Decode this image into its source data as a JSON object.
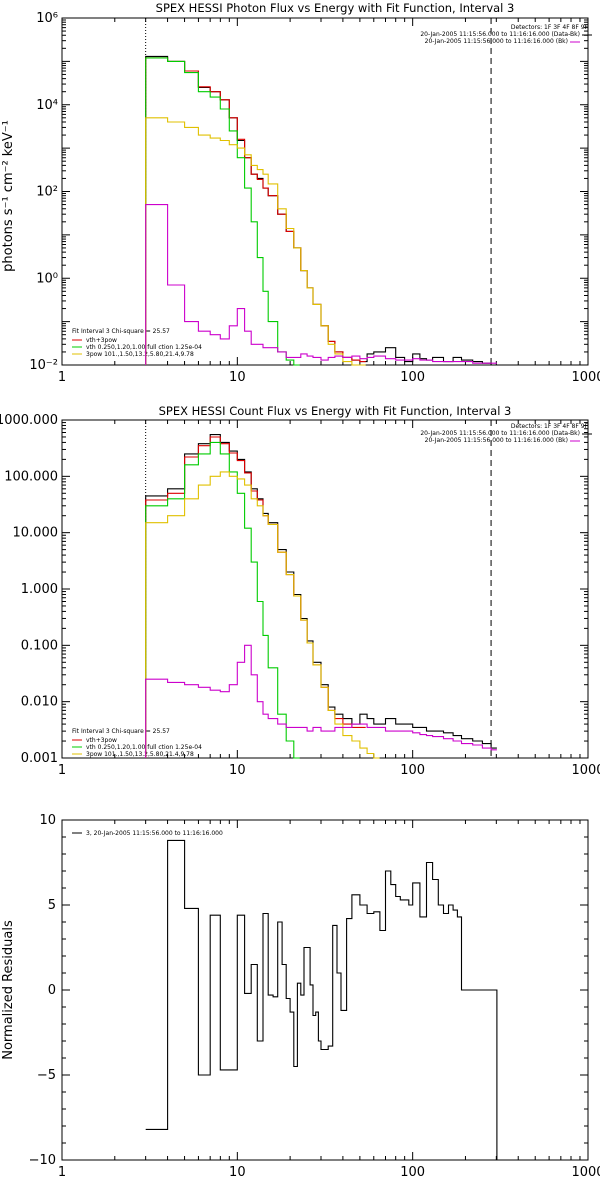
{
  "chart_data": [
    {
      "type": "line",
      "title": "SPEX HESSI Photon Flux vs Energy with Fit Function, Interval 3",
      "xlabel": "",
      "ylabel": "photons s⁻¹ cm⁻² keV⁻¹",
      "xscale": "log",
      "yscale": "log",
      "xlim": [
        1,
        1000
      ],
      "ylim": [
        0.01,
        1000000
      ],
      "x_ticks": [
        "1",
        "10",
        "100",
        "1000"
      ],
      "y_ticks": [
        "10⁻²",
        "10⁰",
        "10²",
        "10⁴",
        "10⁶"
      ],
      "marker_lines": [
        {
          "x": 3,
          "style": "dotted"
        },
        {
          "x": 280,
          "style": "dashed"
        }
      ],
      "header": {
        "detectors": "Detectors: 1F 3F 4F 8F 9F",
        "line1": "20-Jan-2005 11:15:56.000 to 11:16:16.000 (Data-Bk)",
        "line2": "20-Jan-2005 11:15:56.000 to 11:16:16.000 (Bk)"
      },
      "fit_info": {
        "line1": "Fit Interval 3   Chi-square = 25.57",
        "items": [
          "vth+3pow",
          "vth 0.250,1.20,1.00  full ction 1.25e-04",
          "3pow 101.,1.50,13.2,5.80,21.4,9.78"
        ]
      },
      "series": [
        {
          "color": "#000000",
          "x": [
            3,
            4,
            5,
            6,
            7,
            8,
            9,
            10,
            11,
            12,
            13,
            14,
            15,
            17,
            19,
            21,
            23,
            25,
            27,
            30,
            33,
            36,
            40,
            45,
            50,
            55,
            60,
            70,
            80,
            90,
            100,
            110,
            120,
            130,
            150,
            170,
            190,
            220,
            250,
            280
          ],
          "y": [
            130000,
            100000,
            60000,
            25000,
            20000,
            13000,
            5000,
            1500,
            600,
            250,
            200,
            120,
            80,
            30,
            12,
            5,
            1.5,
            0.6,
            0.25,
            0.08,
            0.035,
            0.02,
            0.015,
            0.013,
            0.012,
            0.018,
            0.02,
            0.025,
            0.015,
            0.012,
            0.018,
            0.014,
            0.013,
            0.015,
            0.012,
            0.015,
            0.013,
            0.012,
            0.011,
            0.01
          ]
        },
        {
          "color": "#dd0000",
          "x": [
            3,
            4,
            5,
            6,
            7,
            8,
            9,
            10,
            11,
            12,
            13,
            14,
            15,
            17,
            19,
            21,
            23,
            25,
            27,
            30,
            33,
            36,
            40,
            45,
            50
          ],
          "y": [
            120000,
            100000,
            60000,
            26000,
            20000,
            13000,
            5000,
            1600,
            600,
            250,
            190,
            120,
            80,
            30,
            12,
            5,
            1.5,
            0.6,
            0.25,
            0.08,
            0.035,
            0.02,
            0.015,
            0.013,
            0.012
          ]
        },
        {
          "color": "#00cc00",
          "x": [
            3,
            4,
            5,
            6,
            7,
            8,
            9,
            10,
            11,
            12,
            13,
            14,
            15,
            17,
            19,
            21
          ],
          "y": [
            120000,
            100000,
            55000,
            20000,
            15000,
            8000,
            2500,
            600,
            120,
            20,
            3,
            0.5,
            0.1,
            0.02,
            0.013,
            0.01
          ]
        },
        {
          "color": "#e0c000",
          "x": [
            3,
            4,
            5,
            6,
            7,
            8,
            9,
            10,
            11,
            12,
            13,
            14,
            15,
            17,
            19,
            21,
            23,
            25,
            27,
            30,
            33,
            36,
            40,
            45,
            50
          ],
          "y": [
            5000,
            4000,
            3000,
            2000,
            1700,
            1500,
            1200,
            1000,
            700,
            400,
            320,
            250,
            150,
            40,
            14,
            5,
            1.5,
            0.6,
            0.25,
            0.08,
            0.03,
            0.018,
            0.012,
            0.01,
            0.01
          ]
        },
        {
          "color": "#cc00cc",
          "x": [
            3,
            4,
            5,
            6,
            7,
            8,
            9,
            10,
            11,
            12,
            13,
            14,
            15,
            17,
            19,
            21,
            23,
            25,
            27,
            30,
            33,
            36,
            40,
            45,
            50,
            55,
            60,
            70,
            80,
            90,
            100,
            110,
            120,
            130,
            150,
            170,
            190,
            220,
            250,
            280
          ],
          "y": [
            50,
            0.7,
            0.1,
            0.06,
            0.05,
            0.04,
            0.08,
            0.2,
            0.06,
            0.03,
            0.03,
            0.025,
            0.025,
            0.02,
            0.015,
            0.015,
            0.018,
            0.016,
            0.015,
            0.013,
            0.015,
            0.016,
            0.015,
            0.016,
            0.014,
            0.015,
            0.016,
            0.014,
            0.013,
            0.013,
            0.014,
            0.013,
            0.013,
            0.012,
            0.012,
            0.012,
            0.012,
            0.011,
            0.011,
            0.011
          ]
        }
      ]
    },
    {
      "type": "line",
      "title": "SPEX HESSI Count Flux vs Energy with Fit Function, Interval 3",
      "xlabel": "",
      "ylabel": "",
      "xscale": "log",
      "yscale": "log",
      "xlim": [
        1,
        1000
      ],
      "ylim": [
        0.001,
        1000
      ],
      "x_ticks": [
        "1",
        "10",
        "100",
        "1000"
      ],
      "y_ticks": [
        "0.001",
        "0.010",
        "0.100",
        "1.000",
        "10.000",
        "100.000",
        "1000.000"
      ],
      "marker_lines": [
        {
          "x": 3,
          "style": "dotted"
        },
        {
          "x": 280,
          "style": "dashed"
        }
      ],
      "header": {
        "detectors": "Detectors: 1F 3F 4F 8F 9F",
        "line1": "20-Jan-2005 11:15:56.000 to 11:16:16.000 (Data-Bk)",
        "line2": "20-Jan-2005 11:15:56.000 to 11:16:16.000 (Bk)"
      },
      "fit_info": {
        "line1": "Fit Interval 3   Chi-square = 25.57",
        "items": [
          "vth+3pow",
          "vth 0.250,1.20,1.00  full ction 1.25e-04",
          "3pow 101.,1.50,13.2,5.80,21.4,9.78"
        ]
      },
      "series": [
        {
          "color": "#000000",
          "x": [
            3,
            4,
            5,
            6,
            7,
            8,
            9,
            10,
            11,
            12,
            13,
            14,
            15,
            17,
            19,
            21,
            23,
            25,
            27,
            30,
            33,
            36,
            40,
            45,
            50,
            55,
            60,
            70,
            80,
            90,
            100,
            110,
            120,
            130,
            150,
            170,
            190,
            220,
            250,
            280
          ],
          "y": [
            45,
            60,
            250,
            380,
            550,
            400,
            280,
            200,
            120,
            60,
            40,
            22,
            15,
            5,
            2,
            0.8,
            0.3,
            0.12,
            0.05,
            0.02,
            0.008,
            0.006,
            0.005,
            0.004,
            0.006,
            0.005,
            0.004,
            0.005,
            0.004,
            0.004,
            0.0035,
            0.0035,
            0.003,
            0.003,
            0.0028,
            0.0025,
            0.0022,
            0.002,
            0.0018,
            0.0015
          ]
        },
        {
          "color": "#dd0000",
          "x": [
            3,
            4,
            5,
            6,
            7,
            8,
            9,
            10,
            11,
            12,
            13,
            14,
            15,
            17,
            19,
            21,
            23,
            25,
            27,
            30,
            33,
            36,
            40,
            45,
            50
          ],
          "y": [
            38,
            50,
            220,
            350,
            500,
            380,
            260,
            190,
            115,
            55,
            38,
            20,
            14,
            4.5,
            1.8,
            0.75,
            0.28,
            0.11,
            0.045,
            0.018,
            0.007,
            0.005,
            0.004,
            0.0035,
            0.0035
          ]
        },
        {
          "color": "#00cc00",
          "x": [
            3,
            4,
            5,
            6,
            7,
            8,
            9,
            10,
            11,
            12,
            13,
            14,
            15,
            17,
            19,
            21
          ],
          "y": [
            30,
            40,
            160,
            250,
            400,
            250,
            120,
            50,
            12,
            3,
            0.6,
            0.15,
            0.04,
            0.006,
            0.002,
            0.001
          ]
        },
        {
          "color": "#e0c000",
          "x": [
            3,
            4,
            5,
            6,
            7,
            8,
            9,
            10,
            11,
            12,
            13,
            14,
            15,
            17,
            19,
            21,
            23,
            25,
            27,
            30,
            33,
            36,
            40,
            45,
            50,
            55,
            60
          ],
          "y": [
            15,
            20,
            40,
            70,
            100,
            120,
            100,
            90,
            70,
            40,
            30,
            20,
            14,
            4.5,
            1.8,
            0.75,
            0.28,
            0.11,
            0.045,
            0.018,
            0.007,
            0.004,
            0.0025,
            0.002,
            0.0015,
            0.0012,
            0.001
          ]
        },
        {
          "color": "#cc00cc",
          "x": [
            3,
            4,
            5,
            6,
            7,
            8,
            9,
            10,
            11,
            12,
            13,
            14,
            15,
            17,
            19,
            21,
            23,
            25,
            27,
            30,
            33,
            36,
            40,
            45,
            50,
            55,
            60,
            70,
            80,
            90,
            100,
            110,
            120,
            130,
            150,
            170,
            190,
            220,
            250,
            280
          ],
          "y": [
            0.025,
            0.022,
            0.02,
            0.018,
            0.016,
            0.015,
            0.02,
            0.05,
            0.1,
            0.03,
            0.01,
            0.006,
            0.005,
            0.004,
            0.0035,
            0.0035,
            0.0035,
            0.003,
            0.0035,
            0.003,
            0.003,
            0.0035,
            0.0035,
            0.004,
            0.004,
            0.0035,
            0.0035,
            0.003,
            0.003,
            0.003,
            0.0028,
            0.0026,
            0.0025,
            0.0024,
            0.0022,
            0.002,
            0.0018,
            0.0017,
            0.0015,
            0.0014
          ]
        }
      ]
    },
    {
      "type": "line",
      "title": "",
      "xlabel": "",
      "ylabel": "Normalized Residuals",
      "xscale": "log",
      "yscale": "linear",
      "xlim": [
        1,
        1000
      ],
      "ylim": [
        -10,
        10
      ],
      "x_ticks": [
        "1",
        "10",
        "100",
        "1000"
      ],
      "y_ticks": [
        "−10",
        "−5",
        "0",
        "5",
        "10"
      ],
      "legend": "3, 20-Jan-2005 11:15:56.000 to 11:16:16.000",
      "series": [
        {
          "color": "#000000",
          "x": [
            3,
            4,
            5,
            6,
            7,
            8,
            9,
            10,
            11,
            12,
            13,
            14,
            15,
            16,
            17,
            18,
            19,
            20,
            21,
            22,
            23,
            24,
            25,
            26,
            27,
            28,
            29,
            30,
            31,
            33,
            35,
            37,
            39,
            42,
            45,
            50,
            55,
            60,
            65,
            70,
            75,
            80,
            85,
            90,
            95,
            100,
            110,
            120,
            130,
            140,
            150,
            160,
            170,
            180,
            190,
            200,
            220,
            240,
            260,
            280
          ],
          "y": [
            -8.2,
            8.8,
            4.8,
            -5,
            4.4,
            -4.7,
            -4.7,
            4.4,
            -0.2,
            1.5,
            -3,
            4.5,
            -0.3,
            -0.4,
            4,
            1.5,
            -0.5,
            -1.3,
            -4.5,
            0.4,
            -0.3,
            2.5,
            2.5,
            0.3,
            -1.5,
            -1.3,
            -3,
            -3.5,
            -3.5,
            -3.3,
            3.8,
            1,
            -1.2,
            4.2,
            5.6,
            5,
            4.5,
            4.6,
            3.5,
            7,
            6.2,
            5.5,
            5.3,
            5.3,
            5,
            6.3,
            4.3,
            7.5,
            6.5,
            5,
            4.5,
            5,
            4.7,
            4.3,
            0,
            0,
            0,
            0,
            0,
            0
          ]
        }
      ]
    }
  ]
}
